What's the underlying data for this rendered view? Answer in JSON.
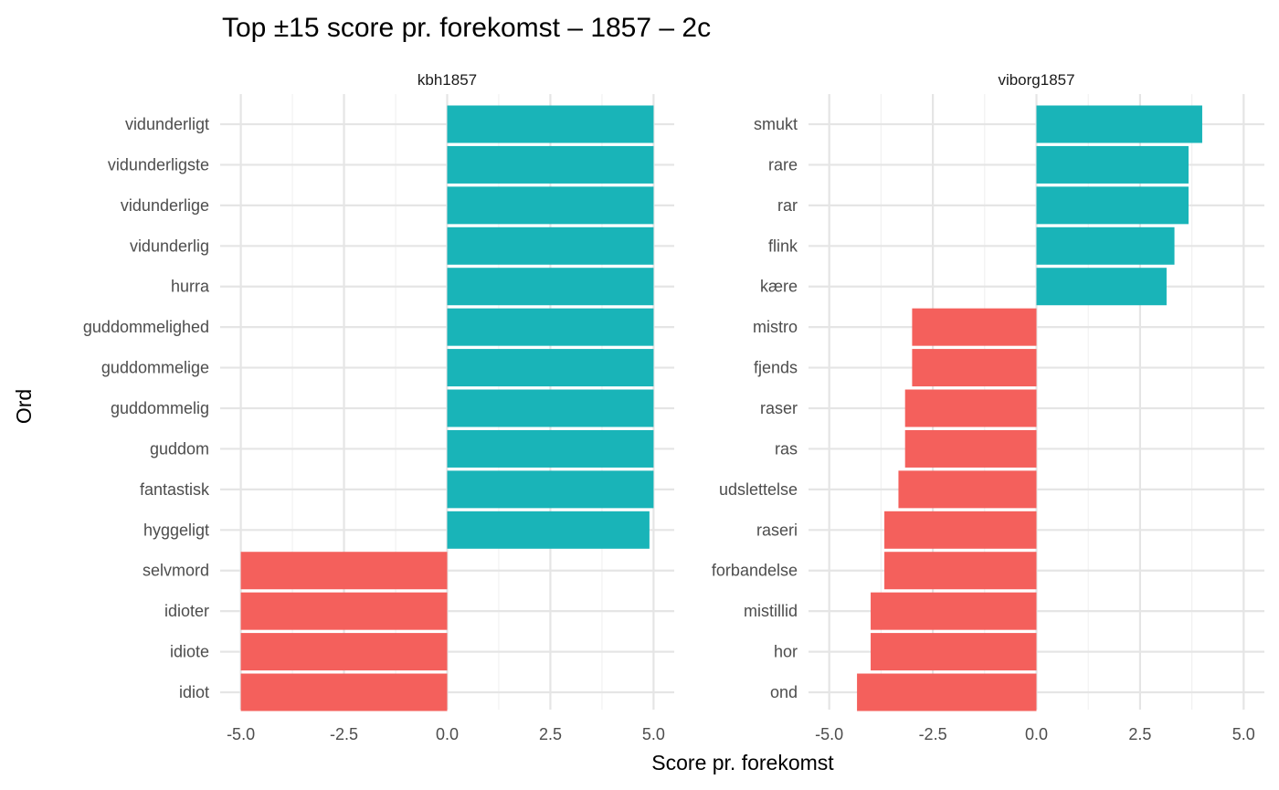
{
  "chart_data": {
    "type": "bar",
    "orientation": "horizontal",
    "title": "Top ±15 score pr. forekomst – 1857 – 2c",
    "xlabel": "Score pr. forekomst",
    "ylabel": "Ord",
    "xlim": [
      -5.5,
      5.5
    ],
    "xticks": [
      -5.0,
      -2.5,
      0.0,
      2.5,
      5.0
    ],
    "xtick_labels": [
      "-5.0",
      "-2.5",
      "0.0",
      "2.5",
      "5.0"
    ],
    "grid": true,
    "colors": {
      "positive": "#19B4B8",
      "negative": "#F4605C"
    },
    "facets": [
      {
        "name": "kbh1857",
        "categories": [
          "vidunderligt",
          "vidunderligste",
          "vidunderlige",
          "vidunderlig",
          "hurra",
          "guddommelighed",
          "guddommelige",
          "guddommelig",
          "guddom",
          "fantastisk",
          "hyggeligt",
          "selvmord",
          "idioter",
          "idiote",
          "idiot"
        ],
        "values": [
          5.0,
          5.0,
          5.0,
          5.0,
          5.0,
          5.0,
          5.0,
          5.0,
          5.0,
          5.0,
          4.9,
          -5.0,
          -5.0,
          -5.0,
          -5.0
        ]
      },
      {
        "name": "viborg1857",
        "categories": [
          "smukt",
          "rare",
          "rar",
          "flink",
          "kære",
          "mistro",
          "fjends",
          "raser",
          "ras",
          "udslettelse",
          "raseri",
          "forbandelse",
          "mistillid",
          "hor",
          "ond"
        ],
        "values": [
          4.0,
          3.67,
          3.67,
          3.33,
          3.14,
          -3.0,
          -3.0,
          -3.17,
          -3.17,
          -3.33,
          -3.67,
          -3.67,
          -4.0,
          -4.0,
          -4.33
        ]
      }
    ]
  }
}
